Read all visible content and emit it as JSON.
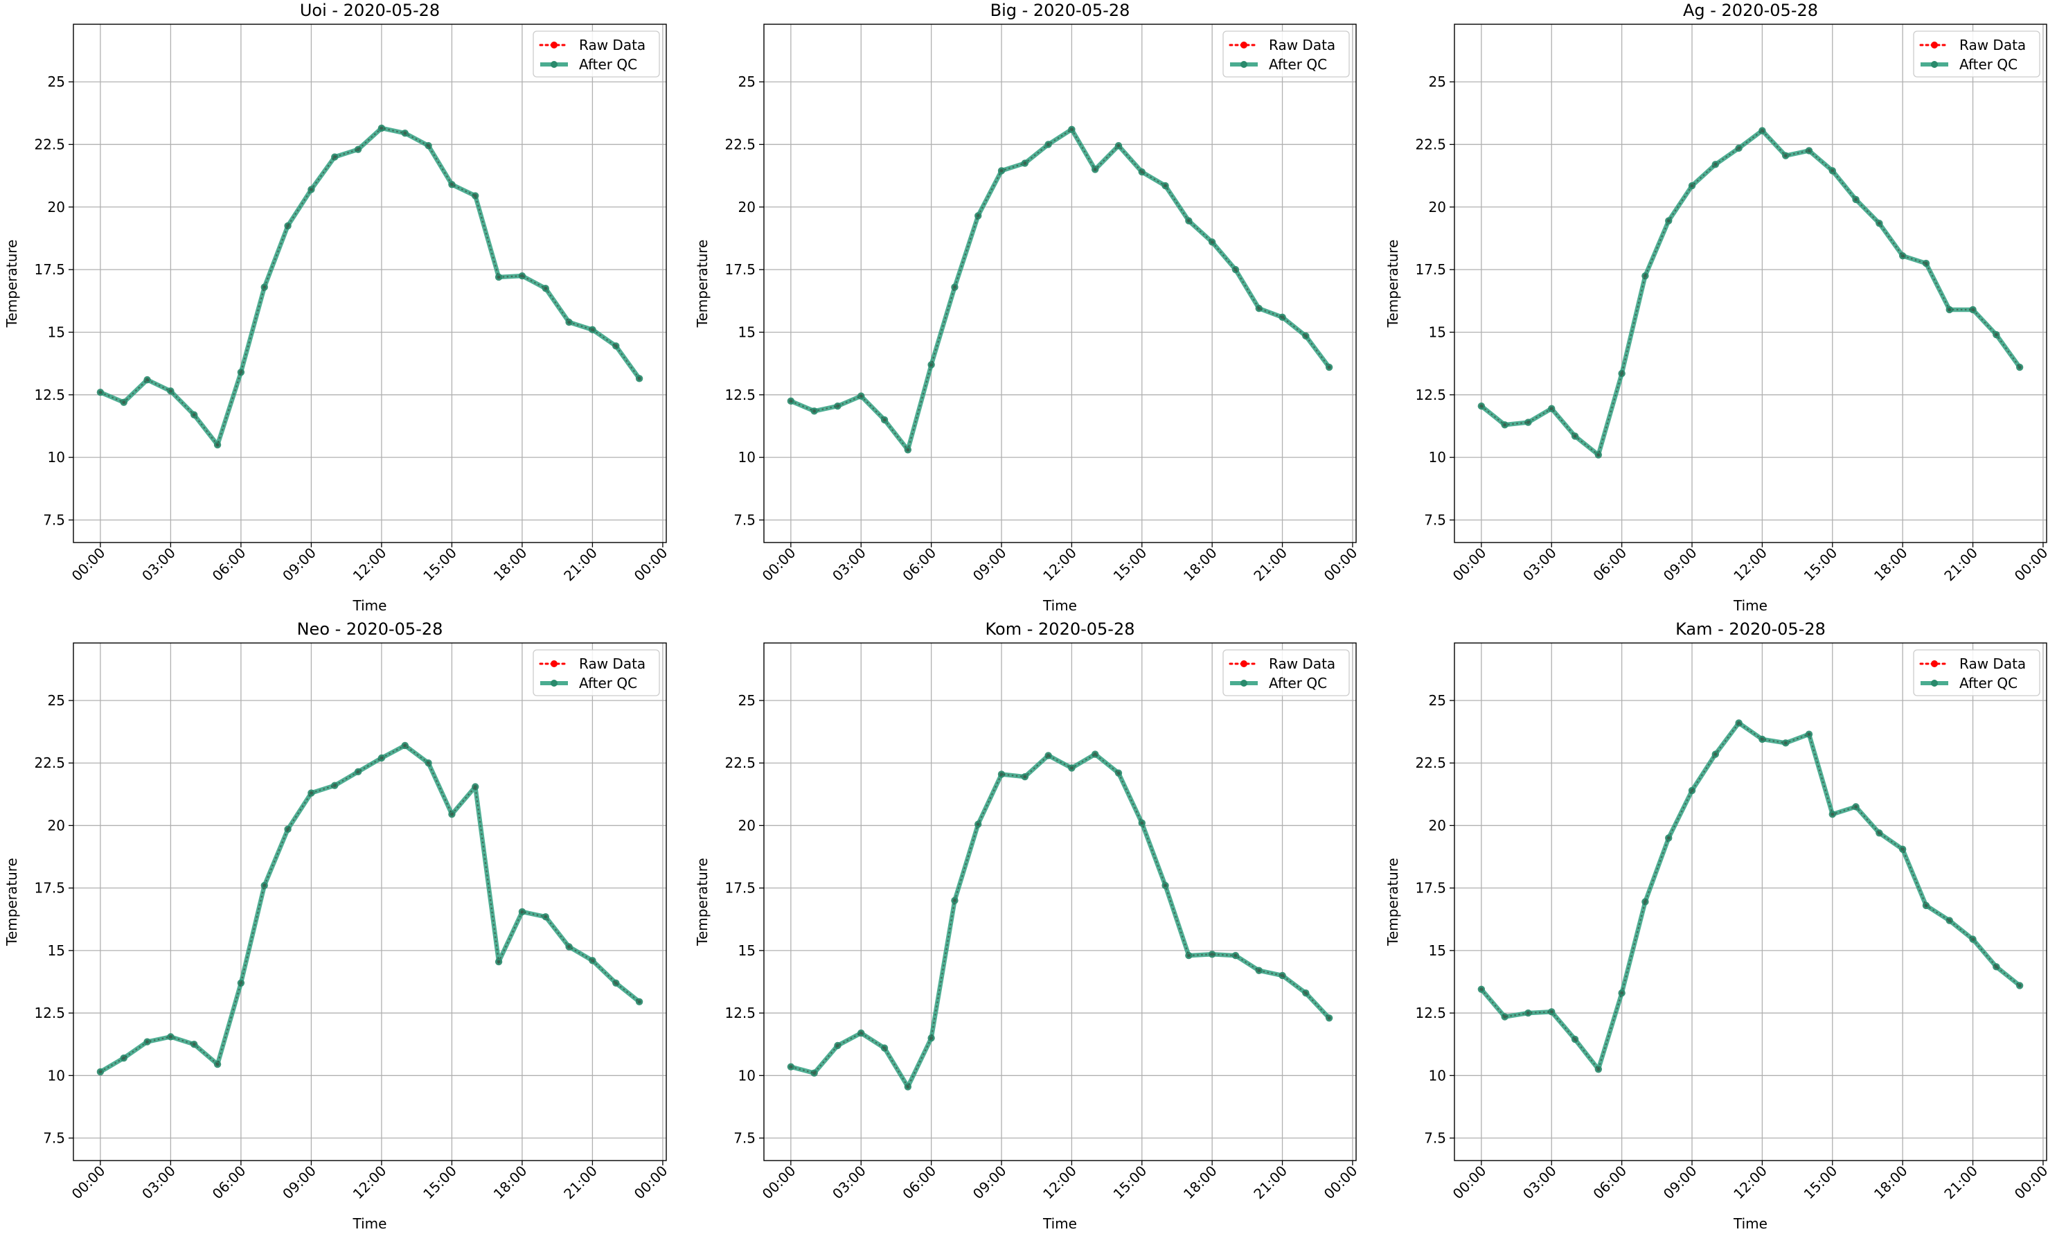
{
  "figure": {
    "background": "#ffffff"
  },
  "legend": {
    "raw_label": "Raw Data",
    "qc_label": "After QC",
    "placement": "upper right"
  },
  "colors": {
    "raw": "#ff0000",
    "qc": "#2a9d7c",
    "qc_marker": "#2a8a6c",
    "grid": "#b0b0b0",
    "axes": "#000000",
    "legend_border": "#cccccc"
  },
  "chart_data": [
    {
      "type": "line",
      "title": "Uoi - 2020-05-28",
      "xlabel": "Time",
      "ylabel": "Temperature",
      "x": [
        "00:00",
        "01:00",
        "02:00",
        "03:00",
        "04:00",
        "05:00",
        "06:00",
        "07:00",
        "08:00",
        "09:00",
        "10:00",
        "11:00",
        "12:00",
        "13:00",
        "14:00",
        "15:00",
        "16:00",
        "17:00",
        "18:00",
        "19:00",
        "20:00",
        "21:00",
        "22:00",
        "23:00"
      ],
      "series": [
        {
          "name": "Raw Data",
          "values": [
            12.6,
            12.2,
            13.1,
            12.65,
            11.7,
            10.5,
            13.4,
            16.8,
            19.25,
            20.7,
            22.0,
            22.3,
            23.15,
            22.95,
            22.45,
            20.9,
            20.45,
            17.2,
            17.25,
            16.75,
            15.4,
            15.1,
            14.45,
            13.15
          ]
        },
        {
          "name": "After QC",
          "values": [
            12.6,
            12.2,
            13.1,
            12.65,
            11.7,
            10.5,
            13.4,
            16.8,
            19.25,
            20.7,
            22.0,
            22.3,
            23.15,
            22.95,
            22.45,
            20.9,
            20.45,
            17.2,
            17.25,
            16.75,
            15.4,
            15.1,
            14.45,
            13.15
          ]
        }
      ],
      "ylim": [
        6.6,
        27.3
      ],
      "yticks": [
        7.5,
        10.0,
        12.5,
        15.0,
        17.5,
        20.0,
        22.5,
        25.0
      ],
      "xticks": [
        "00:00",
        "03:00",
        "06:00",
        "09:00",
        "12:00",
        "15:00",
        "18:00",
        "21:00",
        "00:00"
      ],
      "grid": true,
      "legend_placement": "top-right"
    },
    {
      "type": "line",
      "title": "Big - 2020-05-28",
      "xlabel": "Time",
      "ylabel": "Temperature",
      "x": [
        "00:00",
        "01:00",
        "02:00",
        "03:00",
        "04:00",
        "05:00",
        "06:00",
        "07:00",
        "08:00",
        "09:00",
        "10:00",
        "11:00",
        "12:00",
        "13:00",
        "14:00",
        "15:00",
        "16:00",
        "17:00",
        "18:00",
        "19:00",
        "20:00",
        "21:00",
        "22:00",
        "23:00"
      ],
      "series": [
        {
          "name": "Raw Data",
          "values": [
            12.25,
            11.85,
            12.05,
            12.45,
            11.5,
            10.3,
            13.7,
            16.8,
            19.65,
            21.45,
            21.75,
            22.5,
            23.1,
            21.5,
            22.45,
            21.4,
            20.85,
            19.45,
            18.6,
            17.5,
            15.95,
            15.6,
            14.85,
            13.6
          ]
        },
        {
          "name": "After QC",
          "values": [
            12.25,
            11.85,
            12.05,
            12.45,
            11.5,
            10.3,
            13.7,
            16.8,
            19.65,
            21.45,
            21.75,
            22.5,
            23.1,
            21.5,
            22.45,
            21.4,
            20.85,
            19.45,
            18.6,
            17.5,
            15.95,
            15.6,
            14.85,
            13.6
          ]
        }
      ],
      "ylim": [
        6.6,
        27.3
      ],
      "yticks": [
        7.5,
        10.0,
        12.5,
        15.0,
        17.5,
        20.0,
        22.5,
        25.0
      ],
      "xticks": [
        "00:00",
        "03:00",
        "06:00",
        "09:00",
        "12:00",
        "15:00",
        "18:00",
        "21:00",
        "00:00"
      ],
      "grid": true,
      "legend_placement": "top-right"
    },
    {
      "type": "line",
      "title": "Ag - 2020-05-28",
      "xlabel": "Time",
      "ylabel": "Temperature",
      "x": [
        "00:00",
        "01:00",
        "02:00",
        "03:00",
        "04:00",
        "05:00",
        "06:00",
        "07:00",
        "08:00",
        "09:00",
        "10:00",
        "11:00",
        "12:00",
        "13:00",
        "14:00",
        "15:00",
        "16:00",
        "17:00",
        "18:00",
        "19:00",
        "20:00",
        "21:00",
        "22:00",
        "23:00"
      ],
      "series": [
        {
          "name": "Raw Data",
          "values": [
            12.05,
            11.3,
            11.4,
            11.95,
            10.85,
            10.1,
            13.35,
            17.25,
            19.45,
            20.85,
            21.7,
            22.35,
            23.05,
            22.05,
            22.25,
            21.45,
            20.3,
            19.35,
            18.05,
            17.75,
            15.9,
            15.9,
            14.9,
            13.6
          ]
        },
        {
          "name": "After QC",
          "values": [
            12.05,
            11.3,
            11.4,
            11.95,
            10.85,
            10.1,
            13.35,
            17.25,
            19.45,
            20.85,
            21.7,
            22.35,
            23.05,
            22.05,
            22.25,
            21.45,
            20.3,
            19.35,
            18.05,
            17.75,
            15.9,
            15.9,
            14.9,
            13.6
          ]
        }
      ],
      "ylim": [
        6.6,
        27.3
      ],
      "yticks": [
        7.5,
        10.0,
        12.5,
        15.0,
        17.5,
        20.0,
        22.5,
        25.0
      ],
      "xticks": [
        "00:00",
        "03:00",
        "06:00",
        "09:00",
        "12:00",
        "15:00",
        "18:00",
        "21:00",
        "00:00"
      ],
      "grid": true,
      "legend_placement": "top-right"
    },
    {
      "type": "line",
      "title": "Neo - 2020-05-28",
      "xlabel": "Time",
      "ylabel": "Temperature",
      "x": [
        "00:00",
        "01:00",
        "02:00",
        "03:00",
        "04:00",
        "05:00",
        "06:00",
        "07:00",
        "08:00",
        "09:00",
        "10:00",
        "11:00",
        "12:00",
        "13:00",
        "14:00",
        "15:00",
        "16:00",
        "17:00",
        "18:00",
        "19:00",
        "20:00",
        "21:00",
        "22:00",
        "23:00"
      ],
      "series": [
        {
          "name": "Raw Data",
          "values": [
            10.15,
            10.7,
            11.35,
            11.55,
            11.25,
            10.45,
            13.7,
            17.6,
            19.85,
            21.3,
            21.6,
            22.15,
            22.7,
            23.2,
            22.5,
            20.45,
            21.55,
            14.55,
            16.55,
            16.35,
            15.15,
            14.6,
            13.7,
            12.95
          ]
        },
        {
          "name": "After QC",
          "values": [
            10.15,
            10.7,
            11.35,
            11.55,
            11.25,
            10.45,
            13.7,
            17.6,
            19.85,
            21.3,
            21.6,
            22.15,
            22.7,
            23.2,
            22.5,
            20.45,
            21.55,
            14.55,
            16.55,
            16.35,
            15.15,
            14.6,
            13.7,
            12.95
          ]
        }
      ],
      "ylim": [
        6.6,
        27.3
      ],
      "yticks": [
        7.5,
        10.0,
        12.5,
        15.0,
        17.5,
        20.0,
        22.5,
        25.0
      ],
      "xticks": [
        "00:00",
        "03:00",
        "06:00",
        "09:00",
        "12:00",
        "15:00",
        "18:00",
        "21:00",
        "00:00"
      ],
      "grid": true,
      "legend_placement": "top-right"
    },
    {
      "type": "line",
      "title": "Kom - 2020-05-28",
      "xlabel": "Time",
      "ylabel": "Temperature",
      "x": [
        "00:00",
        "01:00",
        "02:00",
        "03:00",
        "04:00",
        "05:00",
        "06:00",
        "07:00",
        "08:00",
        "09:00",
        "10:00",
        "11:00",
        "12:00",
        "13:00",
        "14:00",
        "15:00",
        "16:00",
        "17:00",
        "18:00",
        "19:00",
        "20:00",
        "21:00",
        "22:00",
        "23:00"
      ],
      "series": [
        {
          "name": "Raw Data",
          "values": [
            10.35,
            10.1,
            11.2,
            11.7,
            11.1,
            9.55,
            11.5,
            17.0,
            20.05,
            22.05,
            21.95,
            22.8,
            22.3,
            22.85,
            22.1,
            20.1,
            17.6,
            14.8,
            14.85,
            14.8,
            14.2,
            14.0,
            13.3,
            12.3
          ]
        },
        {
          "name": "After QC",
          "values": [
            10.35,
            10.1,
            11.2,
            11.7,
            11.1,
            9.55,
            11.5,
            17.0,
            20.05,
            22.05,
            21.95,
            22.8,
            22.3,
            22.85,
            22.1,
            20.1,
            17.6,
            14.8,
            14.85,
            14.8,
            14.2,
            14.0,
            13.3,
            12.3
          ]
        }
      ],
      "ylim": [
        6.6,
        27.3
      ],
      "yticks": [
        7.5,
        10.0,
        12.5,
        15.0,
        17.5,
        20.0,
        22.5,
        25.0
      ],
      "xticks": [
        "00:00",
        "03:00",
        "06:00",
        "09:00",
        "12:00",
        "15:00",
        "18:00",
        "21:00",
        "00:00"
      ],
      "grid": true,
      "legend_placement": "top-right"
    },
    {
      "type": "line",
      "title": "Kam - 2020-05-28",
      "xlabel": "Time",
      "ylabel": "Temperature",
      "x": [
        "00:00",
        "01:00",
        "02:00",
        "03:00",
        "04:00",
        "05:00",
        "06:00",
        "07:00",
        "08:00",
        "09:00",
        "10:00",
        "11:00",
        "12:00",
        "13:00",
        "14:00",
        "15:00",
        "16:00",
        "17:00",
        "18:00",
        "19:00",
        "20:00",
        "21:00",
        "22:00",
        "23:00"
      ],
      "series": [
        {
          "name": "Raw Data",
          "values": [
            13.45,
            12.35,
            12.5,
            12.55,
            11.45,
            10.25,
            13.3,
            16.95,
            19.5,
            21.4,
            22.85,
            24.1,
            23.45,
            23.3,
            23.65,
            20.45,
            20.75,
            19.7,
            19.05,
            16.8,
            16.2,
            15.45,
            14.35,
            13.6
          ]
        },
        {
          "name": "After QC",
          "values": [
            13.45,
            12.35,
            12.5,
            12.55,
            11.45,
            10.25,
            13.3,
            16.95,
            19.5,
            21.4,
            22.85,
            24.1,
            23.45,
            23.3,
            23.65,
            20.45,
            20.75,
            19.7,
            19.05,
            16.8,
            16.2,
            15.45,
            14.35,
            13.6
          ]
        }
      ],
      "ylim": [
        6.6,
        27.3
      ],
      "yticks": [
        7.5,
        10.0,
        12.5,
        15.0,
        17.5,
        20.0,
        22.5,
        25.0
      ],
      "xticks": [
        "00:00",
        "03:00",
        "06:00",
        "09:00",
        "12:00",
        "15:00",
        "18:00",
        "21:00",
        "00:00"
      ],
      "grid": true,
      "legend_placement": "top-right"
    }
  ]
}
